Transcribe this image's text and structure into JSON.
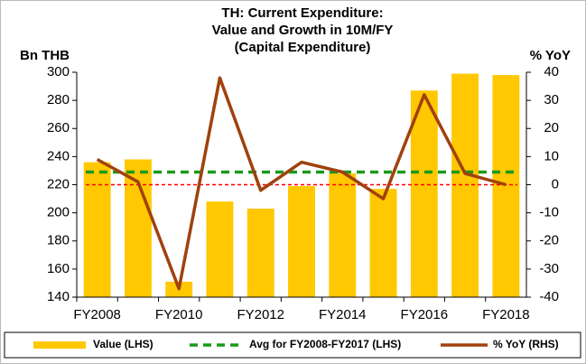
{
  "chart_data": {
    "type": "bar-line",
    "title": [
      "TH: Current Expenditure:",
      "Value and Growth in 10M/FY",
      "(Capital Expenditure)"
    ],
    "y_label": "Bn THB",
    "y2_label": "% YoY",
    "categories": [
      "FY2008",
      null,
      "FY2010",
      null,
      "FY2012",
      null,
      "FY2014",
      null,
      "FY2016",
      null,
      "FY2018"
    ],
    "series": [
      {
        "name": "Value (LHS)",
        "type": "bar",
        "color": "#ffc800",
        "values": [
          236,
          238,
          151,
          208,
          203,
          219,
          228,
          217,
          287,
          299,
          298
        ]
      },
      {
        "name": "Avg for FY2008-FY2017 (LHS)",
        "type": "hline",
        "color": "#1a9a1a",
        "value": 229
      },
      {
        "name": "% YoY (RHS)",
        "type": "line",
        "axis": "y2",
        "color": "#a0410d",
        "values": [
          9,
          1,
          -37,
          38,
          -2,
          8,
          4.5,
          -5,
          32,
          4,
          0
        ]
      }
    ],
    "ylim": [
      140,
      300
    ],
    "yticks": [
      140,
      160,
      180,
      200,
      220,
      240,
      260,
      280,
      300
    ],
    "y2lim": [
      -40,
      40
    ],
    "y2ticks": [
      -40,
      -30,
      -20,
      -10,
      0,
      10,
      20,
      30,
      40
    ],
    "zero_line_color": "#ff0000"
  }
}
